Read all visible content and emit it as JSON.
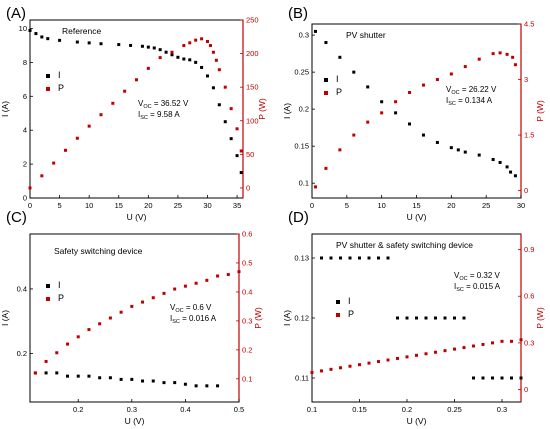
{
  "colors": {
    "I": "#000000",
    "P": "#c00000",
    "axis": "#000000"
  },
  "chart_data": [
    {
      "type": "scatter",
      "panel_label": "(A)",
      "title": "Reference",
      "xlabel": "U (V)",
      "ylabel": "I (A)",
      "y2label": "P (W)",
      "xlim": [
        0,
        36
      ],
      "ylim": [
        0,
        10.5
      ],
      "y2lim": [
        -15,
        250
      ],
      "xticks": [
        0,
        5,
        10,
        15,
        20,
        25,
        30,
        35
      ],
      "yticks": [
        0,
        2,
        4,
        6,
        8,
        10
      ],
      "y2ticks": [
        0,
        50,
        100,
        150,
        200,
        250
      ],
      "legend": [
        {
          "marker": "I"
        },
        {
          "marker": "P"
        }
      ],
      "annotation": [
        {
          "sym": "V",
          "sub": "OC",
          "rest": " = 36.52 V"
        },
        {
          "sym": "I",
          "sub": "SC",
          "rest": " =  9.58 A"
        }
      ],
      "series": [
        {
          "name": "I",
          "axis": "left",
          "x": [
            0,
            1,
            2,
            3,
            5,
            8,
            10,
            12,
            15,
            17,
            19,
            20,
            21,
            22,
            23,
            24,
            25,
            26,
            27,
            28,
            29,
            30,
            31,
            32,
            33,
            34,
            35,
            35.7
          ],
          "y": [
            9.88,
            9.7,
            9.5,
            9.4,
            9.3,
            9.2,
            9.15,
            9.1,
            9.05,
            9.0,
            8.95,
            8.9,
            8.85,
            8.75,
            8.6,
            8.45,
            8.3,
            8.2,
            8.15,
            8.0,
            7.7,
            7.2,
            6.5,
            5.5,
            4.5,
            3.5,
            2.5,
            1.5
          ]
        },
        {
          "name": "P",
          "axis": "right",
          "x": [
            0,
            2,
            4,
            6,
            8,
            10,
            12,
            14,
            16,
            18,
            20,
            22,
            24,
            26,
            27,
            28,
            29,
            30,
            30.5,
            31,
            31.5,
            32,
            33,
            34,
            35,
            35.7
          ],
          "y": [
            0,
            18,
            37,
            56,
            74,
            92,
            109,
            126,
            144,
            161,
            178,
            194,
            202,
            212,
            216,
            220,
            222,
            218,
            212,
            202,
            190,
            176,
            150,
            118,
            88,
            55
          ]
        }
      ]
    },
    {
      "type": "scatter",
      "panel_label": "(B)",
      "title": "PV shutter",
      "xlabel": "U (V)",
      "ylabel": "I (A)",
      "y2label": "P (W)",
      "xlim": [
        0,
        30
      ],
      "ylim": [
        0.08,
        0.315
      ],
      "y2lim": [
        -0.2,
        4.5
      ],
      "xticks": [
        0,
        5,
        10,
        15,
        20,
        25,
        30
      ],
      "yticks": [
        0.1,
        0.15,
        0.2,
        0.25,
        0.3
      ],
      "yticklabels": [
        "0.1",
        "0.15",
        "0.2",
        "0.25",
        "0.3"
      ],
      "y2ticks": [
        0,
        1.5,
        3,
        4.5
      ],
      "y2ticklabels": [
        "0",
        "1.5",
        "3",
        "4.5"
      ],
      "legend": [
        {
          "marker": "I"
        },
        {
          "marker": "P"
        }
      ],
      "annotation": [
        {
          "sym": "V",
          "sub": "OC",
          "rest": " = 26.22 V"
        },
        {
          "sym": "I",
          "sub": "SC",
          "rest": "  =  0.134 A"
        }
      ],
      "series": [
        {
          "name": "I",
          "axis": "left",
          "x": [
            0.5,
            2,
            4,
            6,
            8,
            10,
            12,
            14,
            16,
            18,
            20,
            21,
            22,
            24,
            26,
            27,
            28,
            28.5,
            29.2
          ],
          "y": [
            0.305,
            0.29,
            0.27,
            0.25,
            0.23,
            0.21,
            0.195,
            0.18,
            0.165,
            0.155,
            0.148,
            0.145,
            0.142,
            0.138,
            0.132,
            0.128,
            0.122,
            0.115,
            0.11
          ]
        },
        {
          "name": "P",
          "axis": "right",
          "x": [
            0.5,
            2,
            4,
            6,
            8,
            10,
            12,
            14,
            16,
            18,
            20,
            22,
            24,
            26,
            27,
            28,
            28.8,
            29.2
          ],
          "y": [
            0.1,
            0.6,
            1.1,
            1.5,
            1.85,
            2.1,
            2.4,
            2.65,
            2.85,
            3.0,
            3.15,
            3.35,
            3.55,
            3.7,
            3.72,
            3.68,
            3.6,
            3.4
          ]
        }
      ]
    },
    {
      "type": "scatter",
      "panel_label": "(C)",
      "title": "Safety switching device",
      "xlabel": "U (V)",
      "ylabel": "I (A)",
      "y2label": "P (W)",
      "xlim": [
        0.11,
        0.5
      ],
      "ylim": [
        0.05,
        0.57
      ],
      "y2lim": [
        0.02,
        0.6
      ],
      "xticks": [
        0.2,
        0.3,
        0.4,
        0.5
      ],
      "xticklabels": [
        "0.2",
        "0.3",
        "0.4",
        "0.5"
      ],
      "yticks": [
        0.2,
        0.4
      ],
      "yticklabels": [
        "0.2",
        "0.4"
      ],
      "y2ticks": [
        0.1,
        0.2,
        0.3,
        0.4,
        0.5,
        0.6
      ],
      "y2ticklabels": [
        "0.1",
        "0.2",
        "0.3",
        "0.4",
        "0.5",
        "0.6"
      ],
      "legend": [
        {
          "marker": "I"
        },
        {
          "marker": "P"
        }
      ],
      "annotation": [
        {
          "sym": "V",
          "sub": "OC",
          "rest": " = 0.6 V"
        },
        {
          "sym": "I",
          "sub": "SC",
          "rest": " = 0.016 A"
        }
      ],
      "series": [
        {
          "name": "I",
          "axis": "left",
          "x": [
            0.12,
            0.14,
            0.16,
            0.18,
            0.2,
            0.22,
            0.24,
            0.26,
            0.28,
            0.3,
            0.32,
            0.34,
            0.36,
            0.38,
            0.4,
            0.42,
            0.44,
            0.46
          ],
          "y": [
            0.14,
            0.14,
            0.14,
            0.13,
            0.13,
            0.13,
            0.125,
            0.125,
            0.12,
            0.12,
            0.115,
            0.115,
            0.11,
            0.11,
            0.105,
            0.1,
            0.1,
            0.1
          ]
        },
        {
          "name": "P",
          "axis": "right",
          "x": [
            0.12,
            0.14,
            0.16,
            0.18,
            0.2,
            0.22,
            0.24,
            0.26,
            0.28,
            0.3,
            0.32,
            0.34,
            0.36,
            0.38,
            0.4,
            0.42,
            0.44,
            0.46,
            0.48,
            0.5
          ],
          "y": [
            0.12,
            0.16,
            0.19,
            0.22,
            0.245,
            0.27,
            0.29,
            0.31,
            0.33,
            0.35,
            0.365,
            0.38,
            0.395,
            0.41,
            0.42,
            0.43,
            0.44,
            0.455,
            0.46,
            0.47
          ]
        }
      ]
    },
    {
      "type": "scatter",
      "panel_label": "(D)",
      "title": "PV shutter & safety switching device",
      "xlabel": "U (V)",
      "ylabel": "I (A)",
      "y2label": "P (W)",
      "xlim": [
        0.1,
        0.32
      ],
      "ylim": [
        0.106,
        0.134
      ],
      "y2lim": [
        -0.08,
        1.0
      ],
      "xticks": [
        0.1,
        0.15,
        0.2,
        0.25,
        0.3
      ],
      "xticklabels": [
        "0.1",
        "0.15",
        "0.2",
        "0.25",
        "0.3"
      ],
      "yticks": [
        0.11,
        0.12,
        0.13
      ],
      "yticklabels": [
        "0.11",
        "0.12",
        "0.13"
      ],
      "y2ticks": [
        0,
        0.3,
        0.6,
        0.9
      ],
      "y2ticklabels": [
        "0",
        "0.3",
        "0.6",
        "0.9"
      ],
      "legend": [
        {
          "marker": "I"
        },
        {
          "marker": "P"
        }
      ],
      "annotation": [
        {
          "sym": "V",
          "sub": "OC",
          "rest": " = 0.32 V"
        },
        {
          "sym": "I",
          "sub": "SC",
          "rest": " = 0.015 A"
        }
      ],
      "series": [
        {
          "name": "I",
          "axis": "left",
          "x": [
            0.11,
            0.12,
            0.13,
            0.14,
            0.15,
            0.16,
            0.17,
            0.18,
            0.19,
            0.2,
            0.21,
            0.22,
            0.23,
            0.24,
            0.25,
            0.26,
            0.27,
            0.28,
            0.29,
            0.3,
            0.31,
            0.32
          ],
          "y": [
            0.13,
            0.13,
            0.13,
            0.13,
            0.13,
            0.13,
            0.13,
            0.13,
            0.12,
            0.12,
            0.12,
            0.12,
            0.12,
            0.12,
            0.12,
            0.12,
            0.11,
            0.11,
            0.11,
            0.11,
            0.11,
            0.11
          ]
        },
        {
          "name": "P",
          "axis": "right",
          "x": [
            0.1,
            0.11,
            0.12,
            0.13,
            0.14,
            0.15,
            0.16,
            0.17,
            0.18,
            0.19,
            0.2,
            0.21,
            0.22,
            0.23,
            0.24,
            0.25,
            0.26,
            0.27,
            0.28,
            0.29,
            0.3,
            0.31,
            0.32
          ],
          "y": [
            0.11,
            0.12,
            0.13,
            0.14,
            0.15,
            0.16,
            0.17,
            0.18,
            0.19,
            0.2,
            0.21,
            0.22,
            0.23,
            0.24,
            0.25,
            0.26,
            0.27,
            0.28,
            0.29,
            0.3,
            0.31,
            0.31,
            0.32
          ]
        }
      ]
    }
  ]
}
